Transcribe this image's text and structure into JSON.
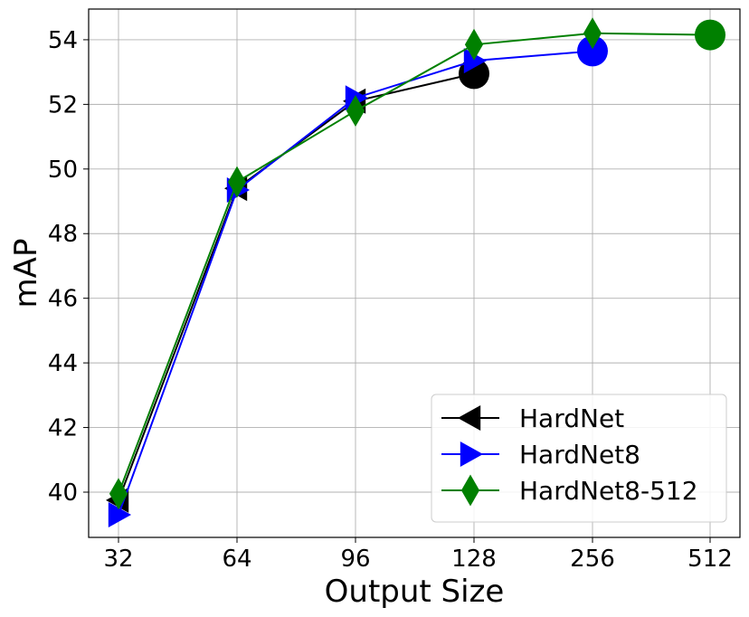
{
  "chart_data": {
    "type": "line",
    "title": "",
    "xlabel": "Output Size",
    "ylabel": "mAP",
    "categories": [
      "32",
      "64",
      "96",
      "128",
      "256",
      "512"
    ],
    "yticks": [
      40,
      42,
      44,
      46,
      48,
      50,
      52,
      54
    ],
    "ylim": [
      38.6,
      54.95
    ],
    "grid": true,
    "legend_position": "bottom-right",
    "series": [
      {
        "name": "HardNet",
        "color": "#000000",
        "marker": "triangle-left",
        "values": [
          39.75,
          49.4,
          52.1,
          52.95,
          null,
          null
        ],
        "end_marker_index": 3
      },
      {
        "name": "HardNet8",
        "color": "#0000ff",
        "marker": "triangle-right",
        "values": [
          39.3,
          49.35,
          52.2,
          53.35,
          53.65,
          null
        ],
        "end_marker_index": 4
      },
      {
        "name": "HardNet8-512",
        "color": "#008000",
        "marker": "diamond",
        "values": [
          39.95,
          49.6,
          51.8,
          53.85,
          54.2,
          54.15
        ],
        "end_marker_index": 5
      }
    ]
  }
}
